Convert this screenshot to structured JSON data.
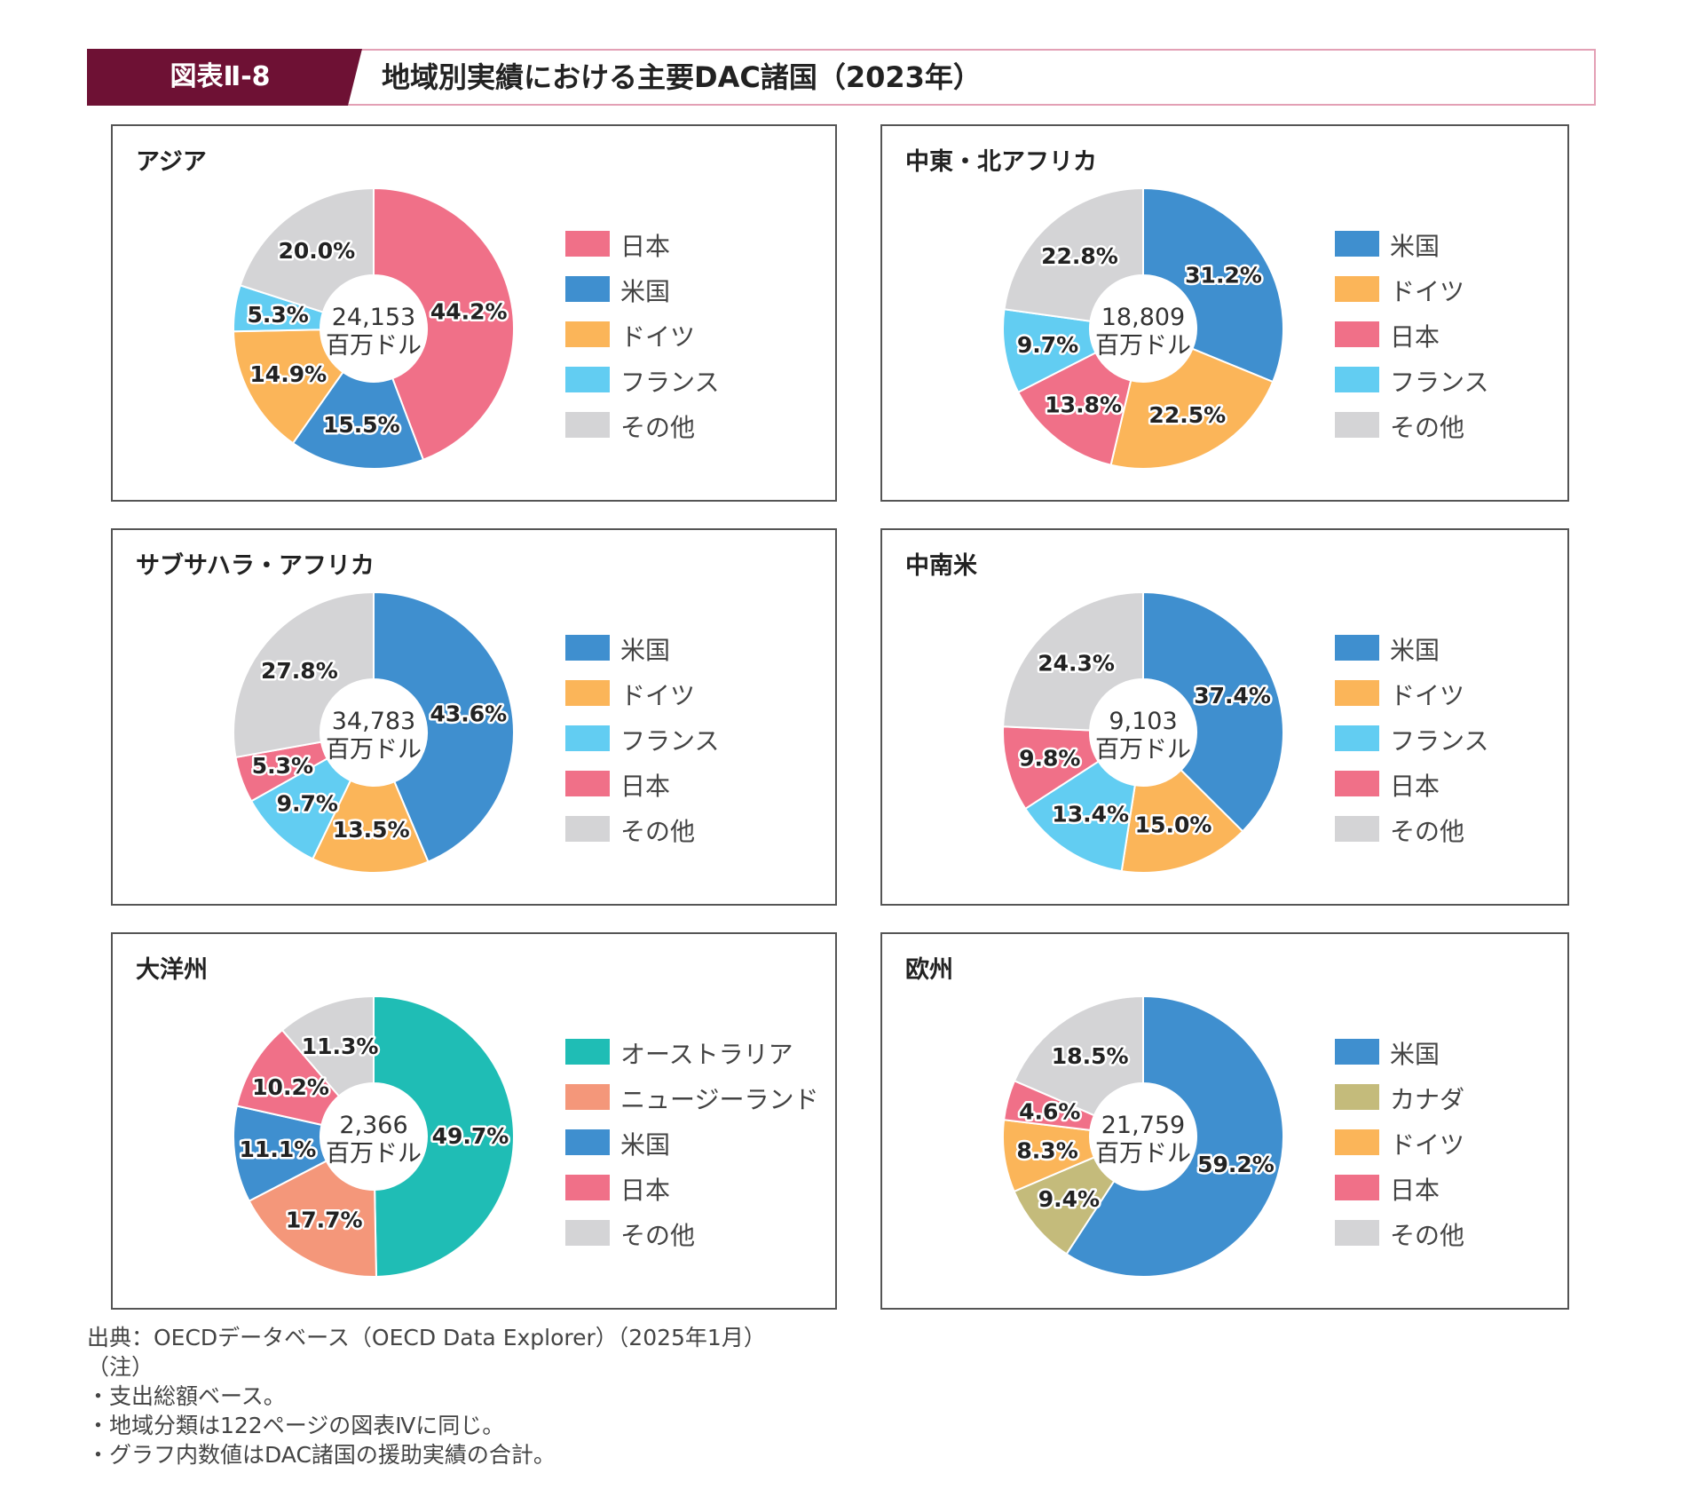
{
  "header": {
    "tag": "図表Ⅱ-8",
    "title": "地域別実績における主要DAC諸国（2023年）",
    "tag_color": "#6e1134",
    "border_color": "#e3a0b5"
  },
  "colors": {
    "日本": "#f07088",
    "米国": "#3f8fcf",
    "ドイツ": "#fbb559",
    "フランス": "#62cdf2",
    "その他": "#d4d4d6",
    "オーストラリア": "#1fbdb5",
    "ニュージーランド": "#f4977a",
    "カナダ": "#c4bb7b"
  },
  "chart_data": [
    {
      "type": "pie",
      "title": "アジア",
      "center_value": "24,153",
      "center_unit": "百万ドル",
      "slices": [
        {
          "label": "日本",
          "value": 44.2,
          "display": "44.2%"
        },
        {
          "label": "米国",
          "value": 15.5,
          "display": "15.5%"
        },
        {
          "label": "ドイツ",
          "value": 14.9,
          "display": "14.9%"
        },
        {
          "label": "フランス",
          "value": 5.3,
          "display": "5.3%"
        },
        {
          "label": "その他",
          "value": 20.0,
          "display": "20.0%"
        }
      ]
    },
    {
      "type": "pie",
      "title": "中東・北アフリカ",
      "center_value": "18,809",
      "center_unit": "百万ドル",
      "slices": [
        {
          "label": "米国",
          "value": 31.2,
          "display": "31.2%"
        },
        {
          "label": "ドイツ",
          "value": 22.5,
          "display": "22.5%"
        },
        {
          "label": "日本",
          "value": 13.8,
          "display": "13.8%"
        },
        {
          "label": "フランス",
          "value": 9.7,
          "display": "9.7%"
        },
        {
          "label": "その他",
          "value": 22.8,
          "display": "22.8%"
        }
      ]
    },
    {
      "type": "pie",
      "title": "サブサハラ・アフリカ",
      "center_value": "34,783",
      "center_unit": "百万ドル",
      "slices": [
        {
          "label": "米国",
          "value": 43.6,
          "display": "43.6%"
        },
        {
          "label": "ドイツ",
          "value": 13.5,
          "display": "13.5%"
        },
        {
          "label": "フランス",
          "value": 9.7,
          "display": "9.7%"
        },
        {
          "label": "日本",
          "value": 5.3,
          "display": "5.3%"
        },
        {
          "label": "その他",
          "value": 27.8,
          "display": "27.8%"
        }
      ]
    },
    {
      "type": "pie",
      "title": "中南米",
      "center_value": "9,103",
      "center_unit": "百万ドル",
      "slices": [
        {
          "label": "米国",
          "value": 37.4,
          "display": "37.4%"
        },
        {
          "label": "ドイツ",
          "value": 15.0,
          "display": "15.0%"
        },
        {
          "label": "フランス",
          "value": 13.4,
          "display": "13.4%"
        },
        {
          "label": "日本",
          "value": 9.8,
          "display": "9.8%"
        },
        {
          "label": "その他",
          "value": 24.3,
          "display": "24.3%"
        }
      ]
    },
    {
      "type": "pie",
      "title": "大洋州",
      "center_value": "2,366",
      "center_unit": "百万ドル",
      "slices": [
        {
          "label": "オーストラリア",
          "value": 49.7,
          "display": "49.7%"
        },
        {
          "label": "ニュージーランド",
          "value": 17.7,
          "display": "17.7%"
        },
        {
          "label": "米国",
          "value": 11.1,
          "display": "11.1%"
        },
        {
          "label": "日本",
          "value": 10.2,
          "display": "10.2%"
        },
        {
          "label": "その他",
          "value": 11.3,
          "display": "11.3%"
        }
      ]
    },
    {
      "type": "pie",
      "title": "欧州",
      "center_value": "21,759",
      "center_unit": "百万ドル",
      "slices": [
        {
          "label": "米国",
          "value": 59.2,
          "display": "59.2%"
        },
        {
          "label": "カナダ",
          "value": 9.4,
          "display": "9.4%"
        },
        {
          "label": "ドイツ",
          "value": 8.3,
          "display": "8.3%"
        },
        {
          "label": "日本",
          "value": 4.6,
          "display": "4.6%"
        },
        {
          "label": "その他",
          "value": 18.5,
          "display": "18.5%"
        }
      ]
    }
  ],
  "notes": {
    "source": "出典：OECDデータベース（OECD Data Explorer）（2025年1月）",
    "note_heading": "（注）",
    "lines": [
      "・支出総額ベース。",
      "・地域分類は122ページの図表Ⅳに同じ。",
      "・グラフ内数値はDAC諸国の援助実績の合計。"
    ]
  }
}
